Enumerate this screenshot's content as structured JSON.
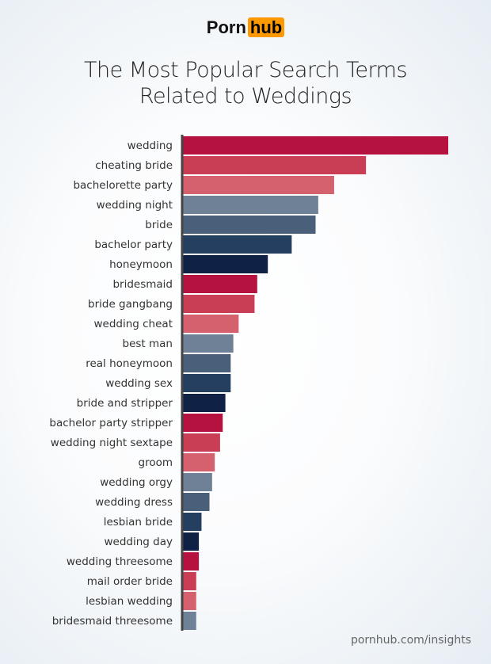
{
  "logo": {
    "part1": "Porn",
    "part2": "hub",
    "accent": "#ff9900"
  },
  "footer": "pornhub.com/insights",
  "chart_data": {
    "type": "bar",
    "orientation": "horizontal",
    "title_line1": "The Most Popular Search Terms",
    "title_line2": "Related to Weddings",
    "value_axis_labels": false,
    "categories": [
      "wedding",
      "cheating bride",
      "bachelorette party",
      "wedding night",
      "bride",
      "bachelor party",
      "honeymoon",
      "bridesmaid",
      "bride gangbang",
      "wedding cheat",
      "best man",
      "real honeymoon",
      "wedding sex",
      "bride and stripper",
      "bachelor party stripper",
      "wedding night sextape",
      "groom",
      "wedding orgy",
      "wedding dress",
      "lesbian bride",
      "wedding day",
      "wedding threesome",
      "mail order bride",
      "lesbian wedding",
      "bridesmaid threesome"
    ],
    "values": [
      100,
      69,
      57,
      51,
      50,
      41,
      32,
      28,
      27,
      21,
      19,
      18,
      18,
      16,
      15,
      14,
      12,
      11,
      10,
      7,
      6,
      6,
      5,
      5,
      5
    ],
    "xlim": [
      0,
      100
    ],
    "grid": false,
    "color_cycle": [
      "#b5123f",
      "#c93d55",
      "#d5606e",
      "#6e8196",
      "#4a5f7a",
      "#243f5f",
      "#0f2246"
    ]
  }
}
